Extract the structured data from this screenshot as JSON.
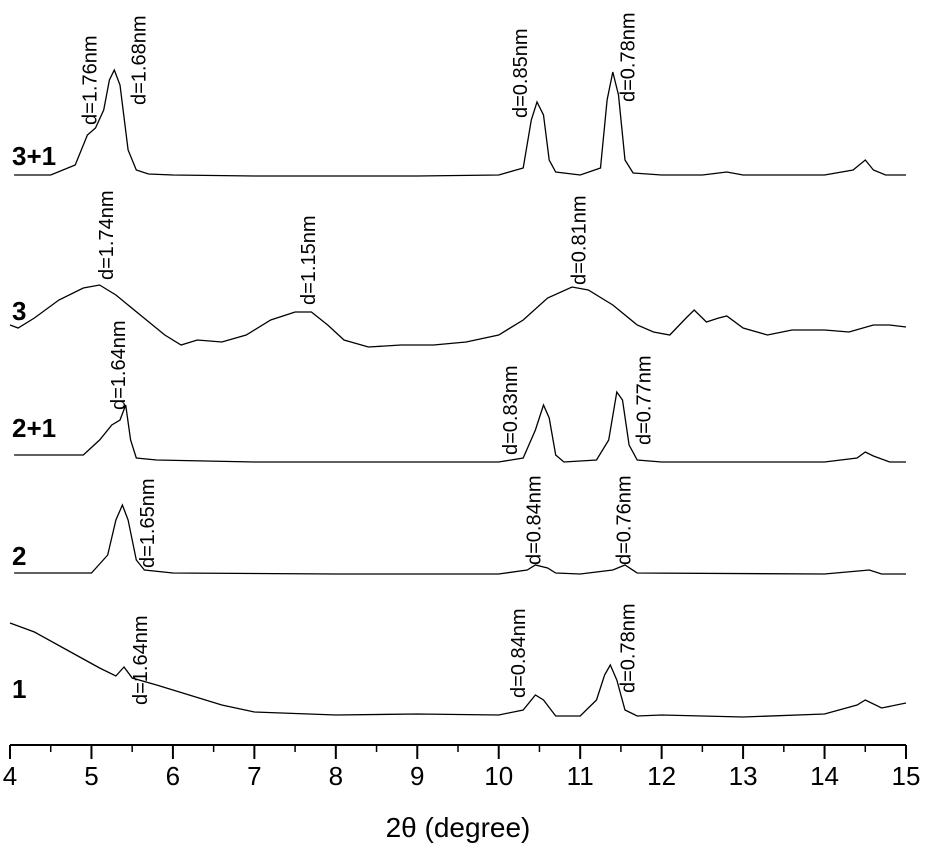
{
  "chart_data": {
    "type": "line",
    "x_label": "2θ (degree)",
    "xlim": [
      4,
      15
    ],
    "xticks": [
      4,
      5,
      6,
      7,
      8,
      9,
      10,
      11,
      12,
      13,
      14,
      15
    ],
    "xminorticks": [
      4.5,
      5.5,
      6.5,
      7.5,
      8.5,
      9.5,
      10.5,
      11.5,
      12.5,
      13.5,
      14.5
    ],
    "ylim": [
      0,
      705
    ],
    "color": "#000000",
    "series": [
      {
        "name": "3+1",
        "x": [
          4.05,
          4.5,
          4.8,
          4.95,
          5.05,
          5.15,
          5.22,
          5.28,
          5.35,
          5.45,
          5.55,
          5.7,
          6,
          7,
          8,
          9,
          10,
          10.3,
          10.4,
          10.47,
          10.55,
          10.62,
          10.7,
          11,
          11.25,
          11.33,
          11.4,
          11.47,
          11.55,
          11.65,
          12,
          12.5,
          12.8,
          13,
          14,
          14.35,
          14.5,
          14.6,
          14.75,
          15
        ],
        "values": [
          570,
          570,
          580,
          610,
          617,
          635,
          665,
          675,
          660,
          595,
          575,
          571,
          570,
          569,
          569,
          569,
          570,
          577,
          625,
          643,
          630,
          585,
          573,
          570,
          577,
          645,
          673,
          650,
          585,
          572,
          570,
          570,
          573,
          570,
          570,
          575,
          585,
          575,
          570,
          570
        ]
      },
      {
        "name": "3",
        "x": [
          4.0,
          4.1,
          4.3,
          4.6,
          4.9,
          5.1,
          5.3,
          5.6,
          5.9,
          6.1,
          6.3,
          6.6,
          6.9,
          7.2,
          7.5,
          7.7,
          7.9,
          8.1,
          8.4,
          8.8,
          9.2,
          9.6,
          10.0,
          10.3,
          10.6,
          10.9,
          11.1,
          11.4,
          11.7,
          11.9,
          12.1,
          12.3,
          12.4,
          12.55,
          12.7,
          12.8,
          13.0,
          13.3,
          13.6,
          14.0,
          14.3,
          14.6,
          14.8,
          15.0
        ],
        "values": [
          420,
          417,
          427,
          445,
          457,
          460,
          450,
          430,
          410,
          400,
          405,
          403,
          410,
          425,
          433,
          433,
          420,
          405,
          398,
          400,
          400,
          403,
          410,
          425,
          447,
          458,
          455,
          440,
          420,
          413,
          410,
          427,
          435,
          423,
          427,
          429,
          417,
          410,
          415,
          415,
          413,
          420,
          420,
          418
        ]
      },
      {
        "name": "2+1",
        "x": [
          4.05,
          4.5,
          4.9,
          5.1,
          5.25,
          5.35,
          5.42,
          5.48,
          5.55,
          5.8,
          7,
          8,
          9,
          10,
          10.3,
          10.45,
          10.55,
          10.62,
          10.7,
          10.8,
          11.2,
          11.35,
          11.45,
          11.52,
          11.6,
          11.7,
          12,
          14,
          14.4,
          14.5,
          14.6,
          14.8,
          15
        ],
        "values": [
          290,
          290,
          290,
          305,
          320,
          325,
          340,
          305,
          287,
          285,
          283,
          283,
          283,
          283,
          287,
          315,
          340,
          327,
          290,
          283,
          285,
          305,
          353,
          345,
          300,
          285,
          283,
          283,
          287,
          293,
          289,
          283,
          283
        ]
      },
      {
        "name": "2",
        "x": [
          4.05,
          5.0,
          5.2,
          5.3,
          5.38,
          5.45,
          5.55,
          5.65,
          6,
          8,
          10,
          10.35,
          10.45,
          10.6,
          10.7,
          11,
          11.4,
          11.55,
          11.7,
          14,
          14.55,
          14.7,
          15
        ],
        "values": [
          172,
          172,
          190,
          225,
          240,
          225,
          185,
          175,
          172,
          171,
          171,
          175,
          180,
          177,
          172,
          171,
          175,
          180,
          172,
          171,
          175,
          171,
          171
        ]
      },
      {
        "name": "1",
        "x": [
          4.0,
          4.3,
          4.7,
          5.1,
          5.3,
          5.4,
          5.5,
          5.8,
          6.2,
          6.6,
          7,
          8,
          9,
          10,
          10.3,
          10.45,
          10.55,
          10.7,
          11,
          11.2,
          11.3,
          11.37,
          11.45,
          11.55,
          11.7,
          12,
          13,
          14,
          14.4,
          14.5,
          14.7,
          15
        ],
        "values": [
          122,
          113,
          95,
          77,
          69,
          78,
          67,
          60,
          50,
          40,
          33,
          30,
          31,
          30,
          35,
          50,
          45,
          29,
          29,
          45,
          70,
          80,
          65,
          35,
          29,
          30,
          28,
          31,
          40,
          45,
          37,
          42
        ]
      }
    ],
    "annotations": [
      {
        "text": "d=1.76nm",
        "x": 5.0,
        "y": 620
      },
      {
        "text": "d=1.68nm",
        "x": 5.6,
        "y": 640
      },
      {
        "text": "d=0.85nm",
        "x": 10.28,
        "y": 627
      },
      {
        "text": "d=0.78nm",
        "x": 11.6,
        "y": 643
      },
      {
        "text": "d=1.74nm",
        "x": 5.2,
        "y": 465
      },
      {
        "text": "d=1.15nm",
        "x": 7.68,
        "y": 440
      },
      {
        "text": "d=0.81nm",
        "x": 11.0,
        "y": 460
      },
      {
        "text": "d=1.64nm",
        "x": 5.35,
        "y": 335
      },
      {
        "text": "d=0.83nm",
        "x": 10.16,
        "y": 290
      },
      {
        "text": "d=0.77nm",
        "x": 11.8,
        "y": 300
      },
      {
        "text": "d=1.65nm",
        "x": 5.7,
        "y": 177
      },
      {
        "text": "d=0.84nm",
        "x": 10.45,
        "y": 180
      },
      {
        "text": "d=0.76nm",
        "x": 11.55,
        "y": 180
      },
      {
        "text": "d=1.64nm",
        "x": 5.62,
        "y": 40
      },
      {
        "text": "d=0.84nm",
        "x": 10.26,
        "y": 47
      },
      {
        "text": "d=0.78nm",
        "x": 11.6,
        "y": 52
      }
    ]
  }
}
